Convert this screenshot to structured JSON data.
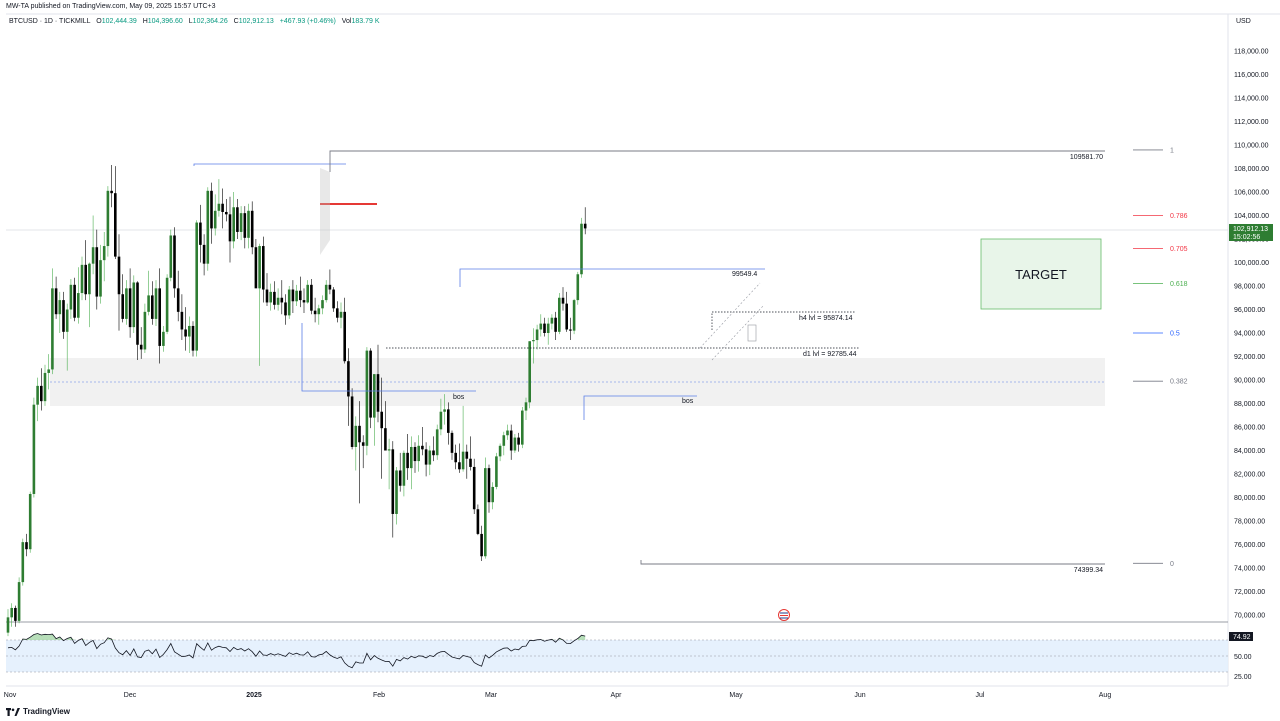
{
  "header": {
    "caption": "MW-TA published on TradingView.com, May 09, 2025 15:57 UTC+3",
    "symbol": "BTCUSD · 1D · TICKMILL",
    "o_label": "O",
    "o_value": "102,444.39",
    "h_label": "H",
    "h_value": "104,396.60",
    "l_label": "L",
    "l_value": "102,364.26",
    "c_label": "C",
    "c_value": "102,912.13",
    "change": "+467.93 (+0.46%)",
    "vol_label": "Vol",
    "vol_value": "183.79 K",
    "currency": "USD"
  },
  "footer": {
    "brand": "TradingView",
    "logo_icon": "tradingview-logo-icon"
  },
  "chart_data": {
    "type": "candlestick",
    "y_range": [
      69000,
      120000
    ],
    "y_ticks": [
      "118,000.00",
      "116,000.00",
      "114,000.00",
      "112,000.00",
      "110,000.00",
      "108,000.00",
      "106,000.00",
      "104,000.00",
      "102,000.00",
      "100,000.00",
      "98,000.00",
      "96,000.00",
      "94,000.00",
      "92,000.00",
      "90,000.00",
      "88,000.00",
      "86,000.00",
      "84,000.00",
      "82,000.00",
      "80,000.00",
      "78,000.00",
      "76,000.00",
      "74,000.00",
      "72,000.00",
      "70,000.00"
    ],
    "x_ticks": [
      "Nov",
      "Dec",
      "2025",
      "Feb",
      "Mar",
      "Apr",
      "May",
      "Jun",
      "Jul",
      "Aug"
    ],
    "last_price_label": "102,912.13",
    "countdown_label": "15:02:56",
    "up_color": "#2e7d32",
    "down_color": "#000000",
    "candles_ohlc": [
      [
        68500,
        70500,
        68200,
        69800
      ],
      [
        69800,
        71000,
        69000,
        70600
      ],
      [
        70600,
        70800,
        69000,
        69500
      ],
      [
        69500,
        73200,
        69300,
        72800
      ],
      [
        72800,
        76500,
        72500,
        76200
      ],
      [
        76200,
        76900,
        75000,
        75600
      ],
      [
        75600,
        80500,
        75300,
        80300
      ],
      [
        80300,
        88500,
        80000,
        87900
      ],
      [
        87900,
        90200,
        86500,
        89500
      ],
      [
        89500,
        91000,
        87400,
        88200
      ],
      [
        88200,
        91300,
        87800,
        90600
      ],
      [
        90600,
        92200,
        89200,
        90900
      ],
      [
        90900,
        99500,
        90500,
        97800
      ],
      [
        97800,
        98800,
        95200,
        95600
      ],
      [
        95600,
        97500,
        94000,
        96800
      ],
      [
        96800,
        97500,
        93500,
        94100
      ],
      [
        94100,
        96500,
        90800,
        96000
      ],
      [
        96000,
        98600,
        95200,
        98100
      ],
      [
        98100,
        98700,
        95000,
        95300
      ],
      [
        95300,
        99600,
        94800,
        97400
      ],
      [
        97400,
        100500,
        96800,
        99800
      ],
      [
        99800,
        101900,
        96800,
        97300
      ],
      [
        97300,
        100000,
        94500,
        99900
      ],
      [
        99900,
        104000,
        99000,
        101300
      ],
      [
        101300,
        102800,
        96000,
        97100
      ],
      [
        97100,
        101500,
        96500,
        100200
      ],
      [
        100200,
        102600,
        98400,
        101400
      ],
      [
        101400,
        106500,
        100500,
        106100
      ],
      [
        106100,
        108300,
        104700,
        105900
      ],
      [
        105900,
        108200,
        100300,
        100500
      ],
      [
        100500,
        102400,
        94200,
        97300
      ],
      [
        97300,
        99000,
        94900,
        95200
      ],
      [
        95200,
        98500,
        94700,
        97800
      ],
      [
        97800,
        99500,
        93600,
        94500
      ],
      [
        94500,
        98900,
        94000,
        98300
      ],
      [
        98300,
        98400,
        91700,
        93000
      ],
      [
        93000,
        94500,
        91800,
        92600
      ],
      [
        92600,
        96500,
        92300,
        95800
      ],
      [
        95800,
        99300,
        95500,
        97200
      ],
      [
        97200,
        98400,
        94700,
        95200
      ],
      [
        95200,
        98500,
        94600,
        97800
      ],
      [
        97800,
        99500,
        91400,
        92900
      ],
      [
        92900,
        94600,
        92400,
        94100
      ],
      [
        94100,
        99000,
        93900,
        98700
      ],
      [
        98700,
        102800,
        98400,
        102300
      ],
      [
        102300,
        103000,
        97000,
        97800
      ],
      [
        97800,
        99300,
        95000,
        95800
      ],
      [
        95800,
        97300,
        93400,
        94300
      ],
      [
        94300,
        96200,
        92500,
        93700
      ],
      [
        93700,
        95400,
        92300,
        94600
      ],
      [
        94600,
        95000,
        92000,
        92500
      ],
      [
        92500,
        103600,
        92000,
        103400
      ],
      [
        103400,
        104900,
        100000,
        101500
      ],
      [
        101500,
        102400,
        98900,
        99900
      ],
      [
        99900,
        106400,
        99300,
        106100
      ],
      [
        106100,
        106800,
        101600,
        102900
      ],
      [
        102900,
        105800,
        102300,
        104400
      ],
      [
        104400,
        107100,
        103900,
        105000
      ],
      [
        105000,
        106300,
        102900,
        104300
      ],
      [
        104300,
        105400,
        103500,
        104100
      ],
      [
        104100,
        105600,
        100000,
        101800
      ],
      [
        101800,
        106000,
        101200,
        104700
      ],
      [
        104700,
        105400,
        102000,
        102600
      ],
      [
        102600,
        104800,
        101900,
        104200
      ],
      [
        104200,
        104800,
        101200,
        102100
      ],
      [
        102100,
        105000,
        101200,
        104400
      ],
      [
        104400,
        105200,
        100700,
        101300
      ],
      [
        101300,
        102000,
        97900,
        97800
      ],
      [
        97800,
        101600,
        91200,
        101400
      ],
      [
        101400,
        102200,
        96600,
        97700
      ],
      [
        97700,
        99100,
        96300,
        96600
      ],
      [
        96600,
        98200,
        95900,
        97500
      ],
      [
        97500,
        98400,
        96000,
        96400
      ],
      [
        96400,
        97800,
        95900,
        97000
      ],
      [
        97000,
        98500,
        95600,
        96600
      ],
      [
        96600,
        97300,
        94700,
        95500
      ],
      [
        95500,
        98000,
        95200,
        97700
      ],
      [
        97700,
        98500,
        95700,
        96700
      ],
      [
        96700,
        98100,
        96300,
        97600
      ],
      [
        97600,
        98800,
        96200,
        96800
      ],
      [
        96800,
        97800,
        95700,
        96600
      ],
      [
        96600,
        98500,
        96500,
        98100
      ],
      [
        98100,
        98600,
        95600,
        95900
      ],
      [
        95900,
        97000,
        94900,
        95600
      ],
      [
        95600,
        96400,
        94700,
        96100
      ],
      [
        96100,
        97200,
        95600,
        96800
      ],
      [
        96800,
        98500,
        96600,
        98100
      ],
      [
        98100,
        99400,
        97300,
        97700
      ],
      [
        97700,
        97900,
        95800,
        96100
      ],
      [
        96100,
        96700,
        94900,
        95300
      ],
      [
        95300,
        96600,
        94400,
        95800
      ],
      [
        95800,
        97000,
        91400,
        91600
      ],
      [
        91600,
        92700,
        86100,
        88600
      ],
      [
        88600,
        89300,
        84100,
        84300
      ],
      [
        84300,
        86900,
        82300,
        86100
      ],
      [
        86100,
        88200,
        79500,
        84700
      ],
      [
        84700,
        85300,
        82500,
        84400
      ],
      [
        84400,
        92800,
        83600,
        92500
      ],
      [
        92500,
        92700,
        85900,
        86800
      ],
      [
        86800,
        90500,
        84400,
        90500
      ],
      [
        90500,
        93000,
        86400,
        87300
      ],
      [
        87300,
        90200,
        81600,
        85900
      ],
      [
        85900,
        88200,
        84000,
        84000
      ],
      [
        84000,
        85000,
        80700,
        84100
      ],
      [
        84100,
        84800,
        76600,
        78600
      ],
      [
        78600,
        82600,
        77700,
        82300
      ],
      [
        82300,
        83800,
        80500,
        81000
      ],
      [
        81000,
        84000,
        80100,
        83800
      ],
      [
        83800,
        85400,
        81500,
        82500
      ],
      [
        82500,
        85200,
        80700,
        84300
      ],
      [
        84300,
        84700,
        82100,
        83100
      ],
      [
        83100,
        85300,
        82200,
        84400
      ],
      [
        84400,
        86000,
        83600,
        84100
      ],
      [
        84100,
        84700,
        81800,
        82800
      ],
      [
        82800,
        84400,
        81900,
        84000
      ],
      [
        84000,
        85200,
        83100,
        83600
      ],
      [
        83600,
        86200,
        83200,
        85800
      ],
      [
        85800,
        88400,
        85300,
        87300
      ],
      [
        87300,
        88800,
        86200,
        87500
      ],
      [
        87500,
        88100,
        84500,
        85500
      ],
      [
        85500,
        85700,
        83200,
        83800
      ],
      [
        83800,
        84500,
        82400,
        83000
      ],
      [
        83000,
        84600,
        82100,
        82400
      ],
      [
        82400,
        87800,
        82200,
        83900
      ],
      [
        83900,
        84500,
        81600,
        83300
      ],
      [
        83300,
        85200,
        82300,
        82600
      ],
      [
        82600,
        83300,
        78600,
        79000
      ],
      [
        79000,
        79400,
        76800,
        76900
      ],
      [
        76900,
        77600,
        74600,
        75000
      ],
      [
        75000,
        83400,
        74800,
        82500
      ],
      [
        82500,
        82800,
        78700,
        79600
      ],
      [
        79600,
        81300,
        79000,
        80900
      ],
      [
        80900,
        83800,
        80700,
        83500
      ],
      [
        83500,
        84600,
        83100,
        84400
      ],
      [
        84400,
        85600,
        83600,
        85300
      ],
      [
        85300,
        86200,
        84900,
        85700
      ],
      [
        85700,
        86200,
        83200,
        84000
      ],
      [
        84000,
        85400,
        83800,
        85100
      ],
      [
        85100,
        85500,
        83900,
        84500
      ],
      [
        84500,
        87700,
        84200,
        87400
      ],
      [
        87400,
        88500,
        86600,
        88100
      ],
      [
        88100,
        93300,
        87600,
        93300
      ],
      [
        93300,
        94400,
        91400,
        93400
      ],
      [
        93400,
        94700,
        92600,
        94300
      ],
      [
        94300,
        95600,
        93700,
        94800
      ],
      [
        94800,
        95300,
        93700,
        94000
      ],
      [
        94000,
        95300,
        93000,
        94800
      ],
      [
        94800,
        95600,
        94300,
        95300
      ],
      [
        95300,
        95800,
        93400,
        94100
      ],
      [
        94100,
        97400,
        93900,
        97000
      ],
      [
        97000,
        97900,
        95900,
        96500
      ],
      [
        96500,
        97500,
        94100,
        94300
      ],
      [
        94300,
        95300,
        93400,
        94200
      ],
      [
        94200,
        96900,
        93900,
        96800
      ],
      [
        96800,
        99200,
        96400,
        99000
      ],
      [
        99000,
        103800,
        98700,
        103300
      ],
      [
        103300,
        104700,
        102400,
        102900
      ]
    ],
    "rsi": [
      60.3,
      60.7,
      57.8,
      62.5,
      71.2,
      70.8,
      73.5,
      76.9,
      78.1,
      76.3,
      77.1,
      76.7,
      77.4,
      71.8,
      73.8,
      69.3,
      71.9,
      73.5,
      65.7,
      69.5,
      71.6,
      63.1,
      67.0,
      69.5,
      59.2,
      64.6,
      66.6,
      72.7,
      71.1,
      60.0,
      54.1,
      51.6,
      56.7,
      50.8,
      58.9,
      48.9,
      48.1,
      55.9,
      57.5,
      52.8,
      58.6,
      48.1,
      52.0,
      58.0,
      65.6,
      55.2,
      52.3,
      49.3,
      49.8,
      51.2,
      47.6,
      65.4,
      60.9,
      57.1,
      66.3,
      57.2,
      60.5,
      62.2,
      60.7,
      60.3,
      55.6,
      60.7,
      57.9,
      59.2,
      56.3,
      59.1,
      55.4,
      49.6,
      56.2,
      51.3,
      50.7,
      53.0,
      51.1,
      52.7,
      51.1,
      49.5,
      54.1,
      51.9,
      53.5,
      51.4,
      51.3,
      55.2,
      49.3,
      48.6,
      51.4,
      52.2,
      55.8,
      51.4,
      48.6,
      46.9,
      49.0,
      41.4,
      37.2,
      35.3,
      42.6,
      41.3,
      41.2,
      53.4,
      45.2,
      50.5,
      47.1,
      45.0,
      43.1,
      43.3,
      37.3,
      45.8,
      43.9,
      48.0,
      46.1,
      49.6,
      47.8,
      50.2,
      49.8,
      47.6,
      50.6,
      49.4,
      53.3,
      55.3,
      55.8,
      52.1,
      48.7,
      47.5,
      46.4,
      50.7,
      49.4,
      48.4,
      41.7,
      39.3,
      37.2,
      51.4,
      47.5,
      50.9,
      55.1,
      57.5,
      59.8,
      60.1,
      56.3,
      58.8,
      57.7,
      62.0,
      62.4,
      69.6,
      69.1,
      70.2,
      70.6,
      68.5,
      69.9,
      70.9,
      67.2,
      72.3,
      70.1,
      65.7,
      65.5,
      69.0,
      71.9,
      76.0,
      74.9
    ],
    "rsi_axis_ticks": [
      "50.00",
      "25.00"
    ],
    "rsi_current_label": "74.92",
    "fib_levels": [
      {
        "ratio": "1",
        "price": 109581.7,
        "color": "#787b86"
      },
      {
        "ratio": "0.786",
        "price": 104000,
        "color": "#f23645"
      },
      {
        "ratio": "0.705",
        "price": 101200,
        "color": "#f23645"
      },
      {
        "ratio": "0.618",
        "price": 98200,
        "color": "#4caf50"
      },
      {
        "ratio": "0.5",
        "price": 94000,
        "color": "#2962ff"
      },
      {
        "ratio": "0.382",
        "price": 89900,
        "color": "#787b86"
      },
      {
        "ratio": "0",
        "price": 74399.34,
        "color": "#787b86"
      }
    ],
    "annotations": {
      "fib_high_label": "109581.70",
      "fib_low_label": "74399.34",
      "level_99549": "99549.4",
      "h4_level": "h4 lvl = 95874.14",
      "d1_level": "d1 lvl = 92785.44",
      "bos_1": "bos",
      "bos_2": "bos",
      "target": "TARGET"
    }
  }
}
